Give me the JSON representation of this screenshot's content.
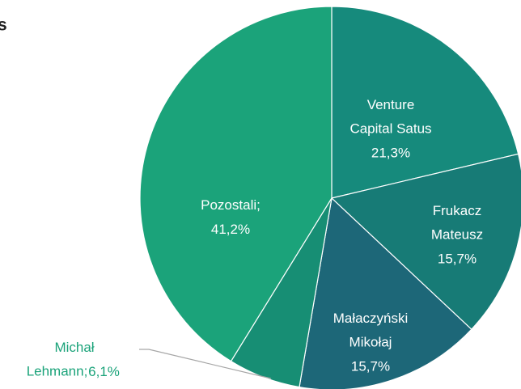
{
  "chart_data": {
    "type": "pie",
    "title": "s",
    "categories": [
      "Venture Capital Satus",
      "Frukacz Mateusz",
      "Małaczyński Mikołaj",
      "Michał Lehmann;",
      "Pozostali;"
    ],
    "values": [
      21.3,
      15.7,
      15.7,
      6.1,
      41.2
    ],
    "value_labels": [
      "21,3%",
      "15,7%",
      "15,7%",
      "6,1%",
      "41,2%"
    ],
    "colors": [
      "#168a7c",
      "#177b76",
      "#1d6778",
      "#178e74",
      "#1ba37a"
    ]
  }
}
